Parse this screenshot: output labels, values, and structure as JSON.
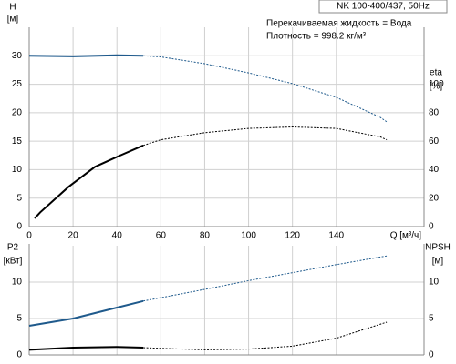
{
  "chart_data": [
    {
      "type": "line",
      "title": "NK 100-400/437, 50Hz",
      "annotations": [
        "Перекачиваемая жидкость = Вода",
        "Плотность = 998.2 кг/м³"
      ],
      "y_label": [
        "H",
        "[м]"
      ],
      "y2_label": [
        "eta",
        "[%]"
      ],
      "x_label": "Q [м³/ч]",
      "xlim": [
        0,
        180
      ],
      "xticks": [
        0,
        20,
        40,
        60,
        80,
        100,
        120,
        140
      ],
      "ylim": [
        0,
        35
      ],
      "yticks": [
        0,
        5,
        10,
        15,
        20,
        25,
        30
      ],
      "y2lim": [
        0,
        140
      ],
      "y2ticks": [
        0,
        20,
        40,
        60,
        80,
        100
      ],
      "grid": true,
      "series": [
        {
          "color": "#1f5a8c",
          "style": "solid",
          "x": [
            0,
            20,
            40,
            52
          ],
          "values": [
            30,
            29.9,
            30.1,
            30
          ]
        },
        {
          "color": "#1f5a8c",
          "style": "dashed",
          "x": [
            52,
            60,
            80,
            100,
            120,
            140,
            160,
            163
          ],
          "values": [
            30,
            29.8,
            28.6,
            27,
            25.1,
            22.7,
            19.2,
            18.4
          ]
        },
        {
          "color": "#000000",
          "style": "solid",
          "axis": "y2",
          "x": [
            2.5,
            5,
            18,
            30,
            40,
            52
          ],
          "values": [
            5.8,
            10,
            28,
            42,
            49,
            57
          ]
        },
        {
          "color": "#000000",
          "style": "dashed",
          "axis": "y2",
          "x": [
            52,
            60,
            80,
            100,
            120,
            140,
            160,
            163
          ],
          "values": [
            57,
            61,
            66,
            69,
            70,
            69,
            63,
            61
          ]
        }
      ]
    },
    {
      "type": "line",
      "y_label": [
        "P2",
        "[кВт]"
      ],
      "y2_label": [
        "NPSH",
        "[м]"
      ],
      "xlim": [
        0,
        180
      ],
      "ylim": [
        0,
        15
      ],
      "yticks": [
        0,
        5,
        10
      ],
      "y2lim": [
        0,
        15
      ],
      "y2ticks": [
        0,
        5,
        10
      ],
      "grid": true,
      "series": [
        {
          "color": "#1f5a8c",
          "style": "solid",
          "x": [
            0,
            20,
            52
          ],
          "values": [
            4,
            5,
            7.4
          ]
        },
        {
          "color": "#1f5a8c",
          "style": "dashed",
          "x": [
            52,
            80,
            100,
            120,
            140,
            163
          ],
          "values": [
            7.4,
            9,
            10.2,
            11.3,
            12.4,
            13.6
          ]
        },
        {
          "color": "#000000",
          "style": "solid",
          "axis": "y2",
          "x": [
            0,
            20,
            40,
            52
          ],
          "values": [
            0.7,
            1,
            1.1,
            1
          ]
        },
        {
          "color": "#000000",
          "style": "dashed",
          "axis": "y2",
          "x": [
            52,
            60,
            80,
            100,
            120,
            140,
            163
          ],
          "values": [
            1,
            0.9,
            0.7,
            0.8,
            1.2,
            2.3,
            4.5
          ]
        }
      ]
    }
  ]
}
